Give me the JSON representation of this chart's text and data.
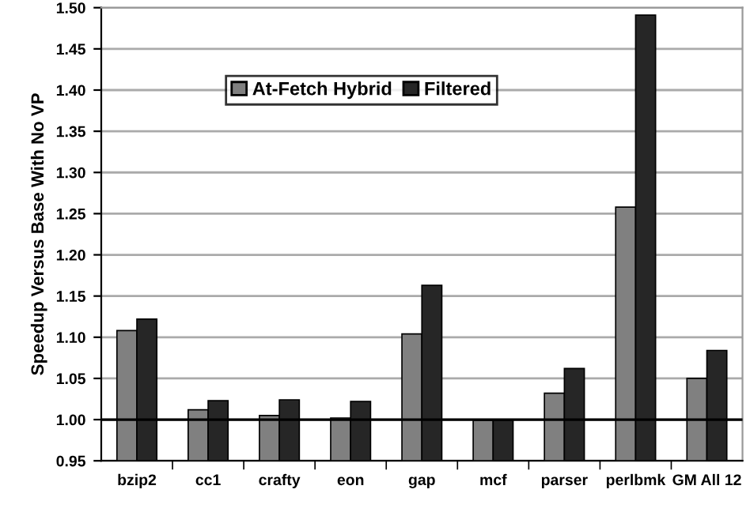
{
  "chart_data": {
    "type": "bar",
    "ylabel": "Speedup Versus Base With No VP",
    "categories": [
      "bzip2",
      "cc1",
      "crafty",
      "eon",
      "gap",
      "mcf",
      "parser",
      "perlbmk",
      "GM All 12"
    ],
    "series": [
      {
        "name": "At-Fetch Hybrid",
        "color": "#808080",
        "values": [
          1.108,
          1.012,
          1.005,
          1.002,
          1.104,
          0.999,
          1.032,
          1.258,
          1.05
        ]
      },
      {
        "name": "Filtered",
        "color": "#262626",
        "values": [
          1.122,
          1.023,
          1.024,
          1.022,
          1.163,
          0.999,
          1.062,
          1.491,
          1.084
        ]
      }
    ],
    "ylim": [
      0.95,
      1.5
    ],
    "yticks": [
      {
        "value": 0.95,
        "label": "0.95"
      },
      {
        "value": 1.0,
        "label": "1.00"
      },
      {
        "value": 1.05,
        "label": "1.05"
      },
      {
        "value": 1.1,
        "label": "1.10"
      },
      {
        "value": 1.15,
        "label": "1.15"
      },
      {
        "value": 1.2,
        "label": "1.20"
      },
      {
        "value": 1.25,
        "label": "1.25"
      },
      {
        "value": 1.3,
        "label": "1.30"
      },
      {
        "value": 1.35,
        "label": "1.35"
      },
      {
        "value": 1.4,
        "label": "1.40"
      },
      {
        "value": 1.45,
        "label": "1.45"
      },
      {
        "value": 1.5,
        "label": "1.50"
      }
    ],
    "ref_lines": [
      {
        "axis": "y",
        "value": 1.0,
        "color": "#000000"
      }
    ],
    "grid": "y",
    "legend": "top left"
  }
}
